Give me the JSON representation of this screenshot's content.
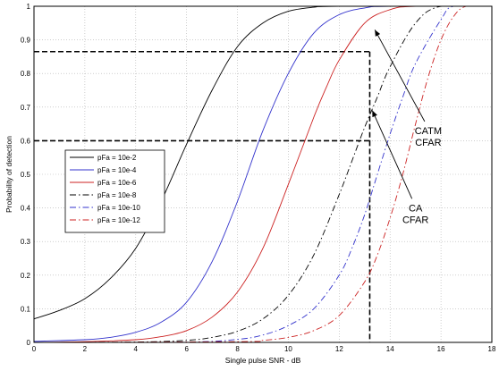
{
  "chart_data": {
    "type": "line",
    "title": "",
    "xlabel": "Single pulse SNR - dB",
    "ylabel": "Probability of detection",
    "xlim": [
      0,
      18
    ],
    "ylim": [
      0,
      1
    ],
    "xticks": [
      0,
      2,
      4,
      6,
      8,
      10,
      12,
      14,
      16,
      18
    ],
    "yticks": [
      0,
      0.1,
      0.2,
      0.3,
      0.4,
      0.5,
      0.6,
      0.7,
      0.8,
      0.9,
      1
    ],
    "grid": true,
    "legend_position": "left-middle",
    "series": [
      {
        "name": "pFa = 10e-2",
        "color": "#000000",
        "style": "solid",
        "x": [
          0,
          1,
          2,
          3,
          4,
          5,
          6,
          7,
          8,
          9,
          10,
          11,
          12
        ],
        "y": [
          0.07,
          0.095,
          0.13,
          0.19,
          0.28,
          0.42,
          0.59,
          0.75,
          0.88,
          0.95,
          0.985,
          0.997,
          1.0
        ]
      },
      {
        "name": "pFa = 10e-4",
        "color": "#3333cc",
        "style": "solid",
        "x": [
          0,
          2,
          3,
          4,
          5,
          6,
          7,
          8,
          9,
          10,
          11,
          12,
          13,
          14
        ],
        "y": [
          0.003,
          0.008,
          0.015,
          0.03,
          0.06,
          0.12,
          0.24,
          0.42,
          0.63,
          0.8,
          0.92,
          0.975,
          0.995,
          1.0
        ]
      },
      {
        "name": "pFa = 10e-6",
        "color": "#cc2222",
        "style": "solid",
        "x": [
          0,
          2,
          4,
          5,
          6,
          7,
          8,
          9,
          10,
          11,
          11.5,
          12,
          13,
          14,
          15
        ],
        "y": [
          0.0,
          0.002,
          0.008,
          0.017,
          0.035,
          0.075,
          0.15,
          0.28,
          0.47,
          0.67,
          0.76,
          0.84,
          0.95,
          0.99,
          1.0
        ]
      },
      {
        "name": "pFa = 10e-8",
        "color": "#000000",
        "style": "dashdot",
        "x": [
          0,
          4,
          6,
          7,
          8,
          9,
          10,
          11,
          12,
          12.5,
          13,
          13.5,
          14,
          15,
          16
        ],
        "y": [
          0.0,
          0.001,
          0.006,
          0.015,
          0.033,
          0.07,
          0.14,
          0.26,
          0.44,
          0.54,
          0.64,
          0.73,
          0.82,
          0.95,
          1.0
        ]
      },
      {
        "name": "pFa = 10e-10",
        "color": "#3333cc",
        "style": "dashdot",
        "x": [
          0,
          6,
          8,
          9,
          10,
          11,
          12,
          12.5,
          13,
          13.5,
          14,
          14.5,
          15,
          16,
          16.5
        ],
        "y": [
          0.0,
          0.001,
          0.009,
          0.022,
          0.05,
          0.1,
          0.2,
          0.28,
          0.38,
          0.5,
          0.62,
          0.73,
          0.83,
          0.96,
          1.0
        ]
      },
      {
        "name": "pFa = 10e-12",
        "color": "#cc2222",
        "style": "dashdot",
        "x": [
          0,
          8,
          9,
          10,
          11,
          12,
          13,
          13.5,
          14,
          14.5,
          15,
          15.5,
          16,
          16.5,
          17
        ],
        "y": [
          0.0,
          0.002,
          0.006,
          0.015,
          0.035,
          0.08,
          0.18,
          0.26,
          0.37,
          0.5,
          0.65,
          0.79,
          0.9,
          0.97,
          1.0
        ]
      }
    ],
    "reference_lines": [
      {
        "from": [
          0,
          0.865
        ],
        "to": [
          13.2,
          0.865
        ],
        "style": "dashed"
      },
      {
        "from": [
          13.2,
          0.865
        ],
        "to": [
          13.2,
          0.6
        ],
        "style": "dashed"
      },
      {
        "from": [
          0,
          0.6
        ],
        "to": [
          13.2,
          0.6
        ],
        "style": "dashed"
      },
      {
        "from": [
          13.2,
          0.6
        ],
        "to": [
          13.2,
          0
        ],
        "style": "dashed"
      }
    ],
    "annotations": [
      {
        "lines": [
          "CATM",
          "CFAR"
        ],
        "text_x": 15.5,
        "text_y": 0.62,
        "arrow_tip": [
          13.4,
          0.93
        ]
      },
      {
        "lines": [
          "CA",
          "CFAR"
        ],
        "text_x": 15.0,
        "text_y": 0.39,
        "arrow_tip": [
          13.3,
          0.69
        ]
      }
    ]
  }
}
